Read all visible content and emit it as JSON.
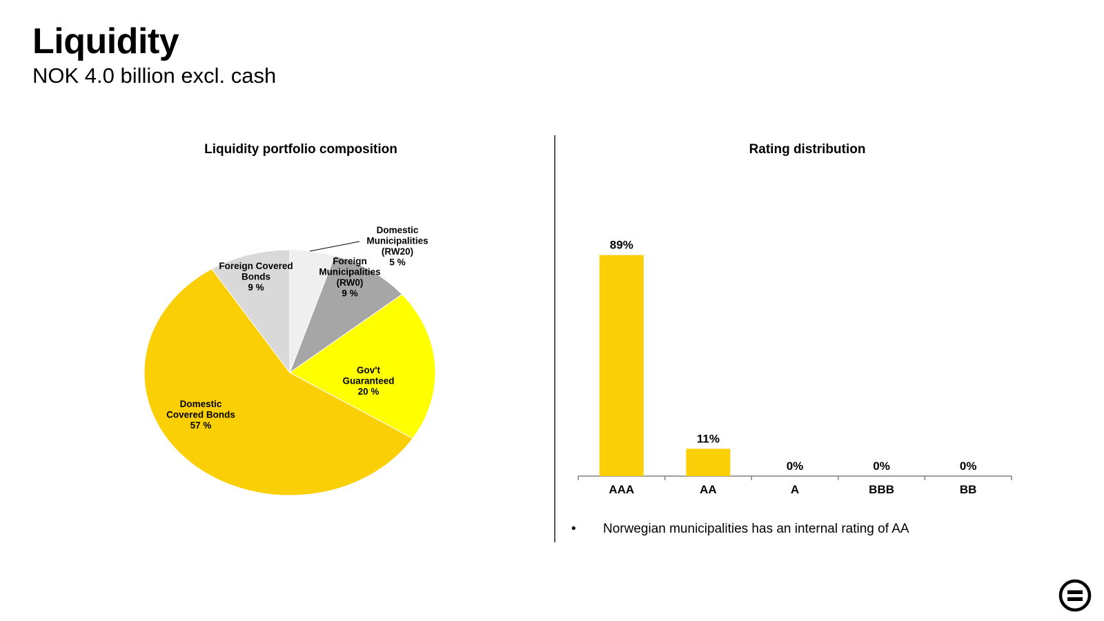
{
  "header": {
    "title": "Liquidity",
    "subtitle": "NOK 4.0 billion excl. cash"
  },
  "footnote": {
    "bullet": "•",
    "text": "Norwegian municipalities has an internal rating of AA"
  },
  "logo": {
    "icon": "equals-circle-logo-icon"
  },
  "colors": {
    "gold": "#FBCF05",
    "yellow": "#FFFF00",
    "light_gray": "#D9D9D9",
    "mid_gray": "#A6A6A6",
    "very_light_gray": "#EFEFEF"
  },
  "chart_data": [
    {
      "type": "pie",
      "title": "Liquidity portfolio composition",
      "slices": [
        {
          "label_lines": [
            "Domestic",
            "Municipalities",
            "(RW20)",
            "5 %"
          ],
          "value": 5,
          "color": "#EFEFEF"
        },
        {
          "label_lines": [
            "Foreign",
            "Municipalities",
            "(RW0)",
            "9 %"
          ],
          "value": 9,
          "color": "#A6A6A6"
        },
        {
          "label_lines": [
            "Gov't",
            "Guaranteed",
            "20 %"
          ],
          "value": 20,
          "color": "#FFFF00"
        },
        {
          "label_lines": [
            "Domestic",
            "Covered Bonds",
            "57 %"
          ],
          "value": 57,
          "color": "#FBCF05"
        },
        {
          "label_lines": [
            "Foreign Covered",
            "Bonds",
            "9 %"
          ],
          "value": 9,
          "color": "#D9D9D9"
        }
      ]
    },
    {
      "type": "bar",
      "title": "Rating distribution",
      "categories": [
        "AAA",
        "AA",
        "A",
        "BBB",
        "BB"
      ],
      "values": [
        89,
        11,
        0,
        0,
        0
      ],
      "value_labels": [
        "89%",
        "11%",
        "0%",
        "0%",
        "0%"
      ],
      "ylim": [
        0,
        100
      ],
      "color": "#FBCF05"
    }
  ]
}
